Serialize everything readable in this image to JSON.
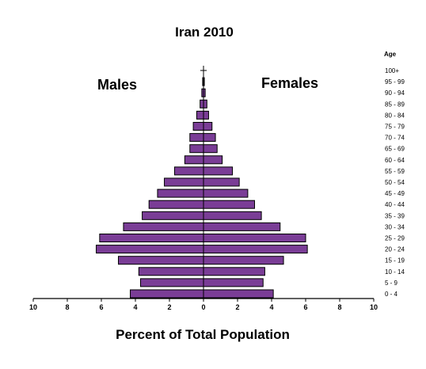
{
  "chart_data": {
    "type": "bar",
    "title": "Iran 2010",
    "xlabel": "Percent of Total Population",
    "age_header": "Age",
    "left_label": "Males",
    "right_label": "Females",
    "xlim": [
      -10,
      10
    ],
    "x_ticks": [
      -10,
      -8,
      -6,
      -4,
      -2,
      0,
      2,
      4,
      6,
      8,
      10
    ],
    "x_tick_labels": [
      "10",
      "8",
      "6",
      "4",
      "2",
      "0",
      "2",
      "4",
      "6",
      "8",
      "10"
    ],
    "categories": [
      "0 - 4",
      "5 - 9",
      "10 - 14",
      "15 - 19",
      "20 - 24",
      "25 - 29",
      "30 - 34",
      "35 - 39",
      "40 - 44",
      "45 - 49",
      "50 - 54",
      "55 - 59",
      "60 - 64",
      "65 - 69",
      "70 - 74",
      "75 - 79",
      "80 - 84",
      "85 - 89",
      "90 - 94",
      "95 - 99",
      "100+"
    ],
    "series": [
      {
        "name": "Males",
        "values": [
          4.3,
          3.7,
          3.8,
          5.0,
          6.3,
          6.1,
          4.7,
          3.6,
          3.2,
          2.7,
          2.3,
          1.7,
          1.1,
          0.8,
          0.8,
          0.6,
          0.4,
          0.2,
          0.1,
          0.05,
          0.03
        ]
      },
      {
        "name": "Females",
        "values": [
          4.1,
          3.5,
          3.6,
          4.7,
          6.1,
          6.0,
          4.5,
          3.4,
          3.0,
          2.6,
          2.1,
          1.7,
          1.1,
          0.8,
          0.7,
          0.5,
          0.3,
          0.2,
          0.1,
          0.05,
          0.03
        ]
      }
    ],
    "colors": {
      "bar_fill": "#7a3d96",
      "bar_stroke": "#000000",
      "axis": "#000000"
    }
  }
}
